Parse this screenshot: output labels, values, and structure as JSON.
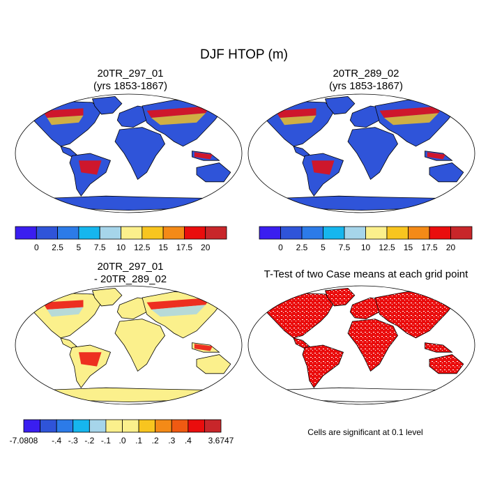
{
  "figure": {
    "title": "DJF HTOP (m)",
    "note": "Cells are significant at 0.1 level"
  },
  "chart_data": [
    {
      "type": "heatmap",
      "title_line1": "20TR_297_01",
      "title_line2": "(yrs 1853-1867)",
      "colorbar": {
        "labels": [
          "0",
          "2.5",
          "5",
          "7.5",
          "10",
          "12.5",
          "15",
          "17.5",
          "20"
        ],
        "colors": [
          "#3a1ef0",
          "#2f54d9",
          "#2c7be8",
          "#16b6ee",
          "#a6d5ea",
          "#fbf08c",
          "#f8c51f",
          "#f48a17",
          "#ea0d0d",
          "#c8262a"
        ]
      },
      "map_colors": {
        "ocean": "#ffffff",
        "land_base": "#2f54d9",
        "antarctica": "#2f54d9",
        "high": "#ea0d0d",
        "mid": "#f8c51f"
      }
    },
    {
      "type": "heatmap",
      "title_line1": "20TR_289_02",
      "title_line2": "(yrs 1853-1867)",
      "colorbar": {
        "labels": [
          "0",
          "2.5",
          "5",
          "7.5",
          "10",
          "12.5",
          "15",
          "17.5",
          "20"
        ],
        "colors": [
          "#3a1ef0",
          "#2f54d9",
          "#2c7be8",
          "#16b6ee",
          "#a6d5ea",
          "#fbf08c",
          "#f8c51f",
          "#f48a17",
          "#ea0d0d",
          "#c8262a"
        ]
      },
      "map_colors": {
        "ocean": "#ffffff",
        "land_base": "#2f54d9",
        "antarctica": "#2f54d9",
        "high": "#ea0d0d",
        "mid": "#f8c51f"
      }
    },
    {
      "type": "heatmap",
      "title_line1": "20TR_297_01",
      "title_line2": "- 20TR_289_02",
      "colorbar": {
        "labels": [
          "-7.0808",
          "-.4",
          "-.3",
          "-.2",
          "-.1",
          ".0",
          ".1",
          ".2",
          ".3",
          ".4",
          "3.6747"
        ],
        "colors": [
          "#3a1ef0",
          "#2f54d9",
          "#2c7be8",
          "#16b6ee",
          "#a6d5ea",
          "#fbf08c",
          "#fbf08c",
          "#f8c51f",
          "#f48a17",
          "#f05a12",
          "#ea0d0d",
          "#c8262a"
        ]
      },
      "map_colors": {
        "ocean": "#ffffff",
        "land_base": "#fbf08c",
        "antarctica": "#fbf08c",
        "high": "#ea0d0d",
        "mid": "#a6d5ea"
      }
    },
    {
      "type": "heatmap",
      "title_line1": "T-Test of two Case means at each grid point",
      "title_line2": "",
      "map_colors": {
        "ocean": "#ffffff",
        "land_base": "#ffffff",
        "antarctica": "#ffffff",
        "high": "#ea0d0d",
        "mid": "#ea0d0d"
      }
    }
  ]
}
